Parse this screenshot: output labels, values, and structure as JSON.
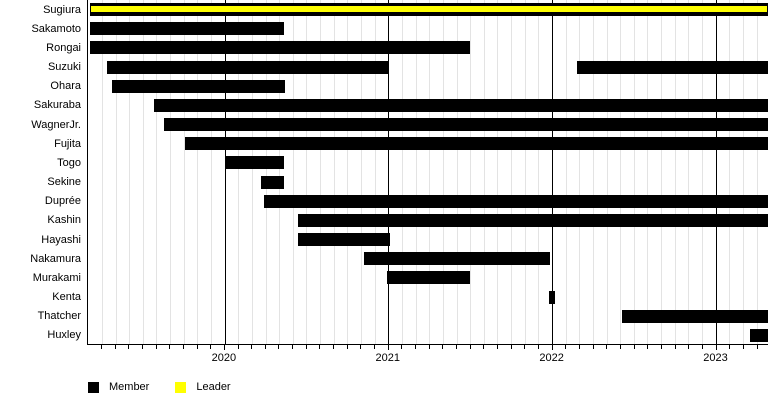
{
  "chart_data": {
    "type": "bar",
    "subtype": "gantt-timeline",
    "title": "",
    "xlabel": "",
    "ylabel": "",
    "x_axis": {
      "min": 2019.165,
      "max": 2023.32,
      "year_ticks": [
        "2020",
        "2021",
        "2022",
        "2023"
      ],
      "year_tick_values": [
        2020,
        2021,
        2022,
        2023
      ],
      "minor_tick_interval_years": 0.0833,
      "grid": "on"
    },
    "rows": [
      {
        "label": "Sugiura",
        "segments": [
          {
            "start": 2019.18,
            "end": 2023.32,
            "role": "leader"
          }
        ]
      },
      {
        "label": "Sakamoto",
        "segments": [
          {
            "start": 2019.18,
            "end": 2020.36,
            "role": "member"
          }
        ]
      },
      {
        "label": "Rongai",
        "segments": [
          {
            "start": 2019.18,
            "end": 2021.5,
            "role": "member"
          }
        ]
      },
      {
        "label": "Suzuki",
        "segments": [
          {
            "start": 2019.28,
            "end": 2021.0,
            "role": "member"
          },
          {
            "start": 2022.15,
            "end": 2023.32,
            "role": "member"
          }
        ]
      },
      {
        "label": "Ohara",
        "segments": [
          {
            "start": 2019.31,
            "end": 2020.37,
            "role": "member"
          }
        ]
      },
      {
        "label": "Sakuraba",
        "segments": [
          {
            "start": 2019.57,
            "end": 2023.32,
            "role": "member"
          }
        ]
      },
      {
        "label": "WagnerJr.",
        "segments": [
          {
            "start": 2019.63,
            "end": 2023.32,
            "role": "member"
          }
        ]
      },
      {
        "label": "Fujita",
        "segments": [
          {
            "start": 2019.76,
            "end": 2023.32,
            "role": "member"
          }
        ]
      },
      {
        "label": "Togo",
        "segments": [
          {
            "start": 2020.01,
            "end": 2020.36,
            "role": "member"
          }
        ]
      },
      {
        "label": "Sekine",
        "segments": [
          {
            "start": 2020.22,
            "end": 2020.36,
            "role": "member"
          }
        ]
      },
      {
        "label": "Duprée",
        "segments": [
          {
            "start": 2020.24,
            "end": 2023.32,
            "role": "member"
          }
        ]
      },
      {
        "label": "Kashin",
        "segments": [
          {
            "start": 2020.45,
            "end": 2023.32,
            "role": "member"
          }
        ]
      },
      {
        "label": "Hayashi",
        "segments": [
          {
            "start": 2020.45,
            "end": 2021.01,
            "role": "member"
          }
        ]
      },
      {
        "label": "Nakamura",
        "segments": [
          {
            "start": 2020.85,
            "end": 2021.99,
            "role": "member"
          }
        ]
      },
      {
        "label": "Murakami",
        "segments": [
          {
            "start": 2020.99,
            "end": 2021.5,
            "role": "member"
          }
        ]
      },
      {
        "label": "Kenta",
        "segments": [
          {
            "start": 2021.98,
            "end": 2022.02,
            "role": "member"
          }
        ]
      },
      {
        "label": "Thatcher",
        "segments": [
          {
            "start": 2022.43,
            "end": 2023.32,
            "role": "member"
          }
        ]
      },
      {
        "label": "Huxley",
        "segments": [
          {
            "start": 2023.21,
            "end": 2023.32,
            "role": "member"
          }
        ]
      }
    ],
    "legend": [
      {
        "label": "Member",
        "color": "#000000"
      },
      {
        "label": "Leader",
        "color": "#ffff00"
      }
    ],
    "legend_position": "bottom-left",
    "colors": {
      "member": "#000000",
      "leader": "#ffff00",
      "grid_minor": "#e3e3e3",
      "grid_major": "#000000",
      "background": "#ffffff"
    }
  }
}
